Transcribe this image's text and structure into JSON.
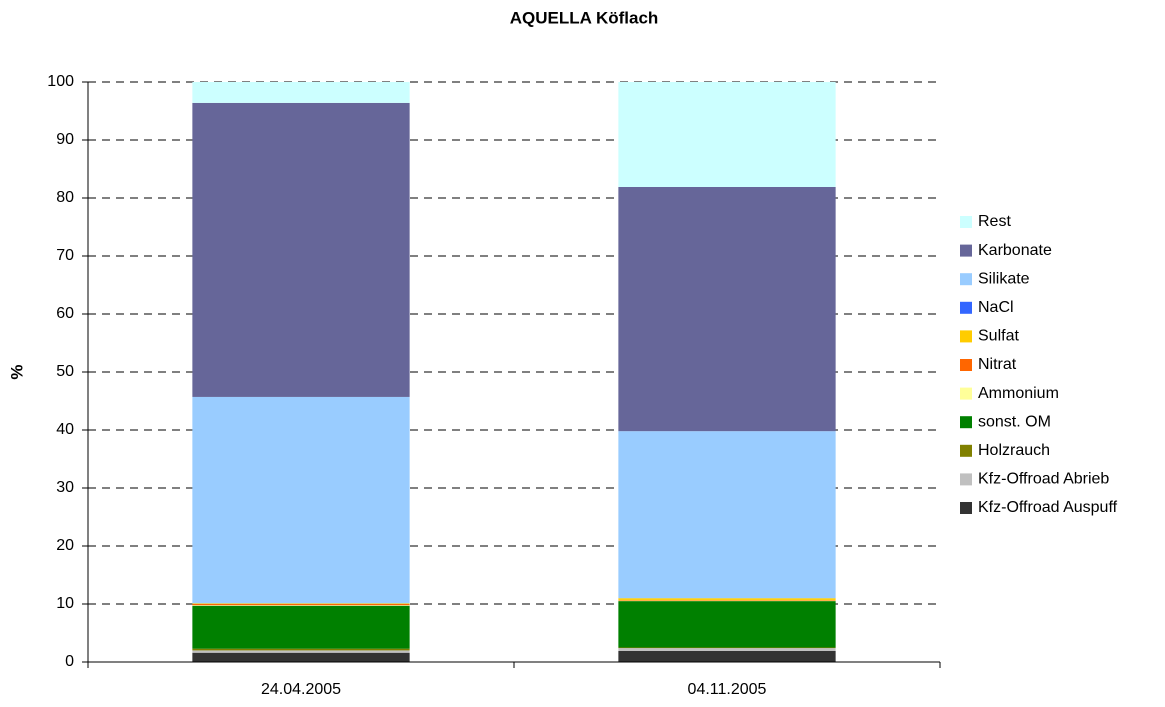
{
  "chart_data": {
    "type": "stacked_bar",
    "title": "AQUELLA Köflach",
    "y_label": "%",
    "categories": [
      "24.04.2005",
      "04.11.2005"
    ],
    "series": [
      {
        "name": "Kfz-Offroad Auspuff",
        "color": "#333333",
        "values": [
          1.6,
          1.9
        ]
      },
      {
        "name": "Kfz-Offroad Abrieb",
        "color": "#c0c0c0",
        "values": [
          0.4,
          0.5
        ]
      },
      {
        "name": "Holzrauch",
        "color": "#808000",
        "values": [
          0.3,
          0.1
        ]
      },
      {
        "name": "sonst. OM",
        "color": "#008000",
        "values": [
          7.4,
          8.0
        ]
      },
      {
        "name": "Ammonium",
        "color": "#ffff99",
        "values": [
          0.1,
          0.1
        ]
      },
      {
        "name": "Nitrat",
        "color": "#ff6600",
        "values": [
          0.2,
          0.1
        ]
      },
      {
        "name": "Sulfat",
        "color": "#ffcc00",
        "values": [
          0.1,
          0.3
        ]
      },
      {
        "name": "NaCl",
        "color": "#3366ff",
        "values": [
          0,
          0
        ]
      },
      {
        "name": "Silikate",
        "color": "#99ccff",
        "values": [
          35.6,
          28.8
        ]
      },
      {
        "name": "Karbonate",
        "color": "#666699",
        "values": [
          50.7,
          42.1
        ]
      },
      {
        "name": "Rest",
        "color": "#ccffff",
        "values": [
          3.6,
          18.1
        ]
      }
    ],
    "ylim": [
      0,
      100
    ],
    "yticks": [
      0,
      10,
      20,
      30,
      40,
      50,
      60,
      70,
      80,
      90,
      100
    ],
    "grid": true,
    "legend": "right"
  }
}
